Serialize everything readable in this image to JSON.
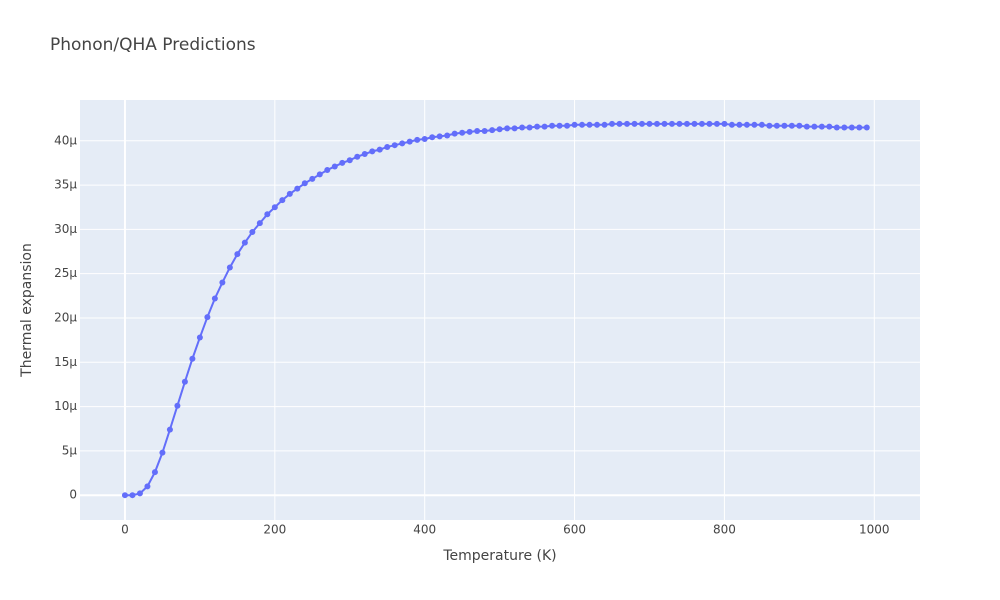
{
  "chart_data": {
    "type": "line",
    "title": "Phonon/QHA Predictions",
    "x_label": "Temperature (K)",
    "y_label": "Thermal expansion",
    "x": [
      0,
      10,
      20,
      30,
      40,
      50,
      60,
      70,
      80,
      90,
      100,
      110,
      120,
      130,
      140,
      150,
      160,
      170,
      180,
      190,
      200,
      210,
      220,
      230,
      240,
      250,
      260,
      270,
      280,
      290,
      300,
      310,
      320,
      330,
      340,
      350,
      360,
      370,
      380,
      390,
      400,
      410,
      420,
      430,
      440,
      450,
      460,
      470,
      480,
      490,
      500,
      510,
      520,
      530,
      540,
      550,
      560,
      570,
      580,
      590,
      600,
      610,
      620,
      630,
      640,
      650,
      660,
      670,
      680,
      690,
      700,
      710,
      720,
      730,
      740,
      750,
      760,
      770,
      780,
      790,
      800,
      810,
      820,
      830,
      840,
      850,
      860,
      870,
      880,
      890,
      900,
      910,
      920,
      930,
      940,
      950,
      960,
      970,
      980,
      990
    ],
    "series": [
      {
        "name": "Thermal expansion",
        "color": "#636efa",
        "values": [
          0,
          0,
          2e-07,
          1e-06,
          2.6e-06,
          4.8e-06,
          7.4e-06,
          1.01e-05,
          1.28e-05,
          1.54e-05,
          1.78e-05,
          2.01e-05,
          2.22e-05,
          2.4e-05,
          2.57e-05,
          2.72e-05,
          2.85e-05,
          2.97e-05,
          3.07e-05,
          3.17e-05,
          3.25e-05,
          3.33e-05,
          3.4e-05,
          3.46e-05,
          3.52e-05,
          3.57e-05,
          3.62e-05,
          3.67e-05,
          3.71e-05,
          3.75e-05,
          3.78e-05,
          3.82e-05,
          3.85e-05,
          3.88e-05,
          3.9e-05,
          3.93e-05,
          3.95e-05,
          3.97e-05,
          3.99e-05,
          4.01e-05,
          4.02e-05,
          4.04e-05,
          4.05e-05,
          4.06e-05,
          4.08e-05,
          4.09e-05,
          4.1e-05,
          4.11e-05,
          4.11e-05,
          4.12e-05,
          4.13e-05,
          4.14e-05,
          4.14e-05,
          4.15e-05,
          4.15e-05,
          4.16e-05,
          4.16e-05,
          4.17e-05,
          4.17e-05,
          4.17e-05,
          4.18e-05,
          4.18e-05,
          4.18e-05,
          4.18e-05,
          4.18e-05,
          4.19e-05,
          4.19e-05,
          4.19e-05,
          4.19e-05,
          4.19e-05,
          4.19e-05,
          4.19e-05,
          4.19e-05,
          4.19e-05,
          4.19e-05,
          4.19e-05,
          4.19e-05,
          4.19e-05,
          4.19e-05,
          4.19e-05,
          4.19e-05,
          4.18e-05,
          4.18e-05,
          4.18e-05,
          4.18e-05,
          4.18e-05,
          4.17e-05,
          4.17e-05,
          4.17e-05,
          4.17e-05,
          4.17e-05,
          4.16e-05,
          4.16e-05,
          4.16e-05,
          4.16e-05,
          4.15e-05,
          4.15e-05,
          4.15e-05,
          4.15e-05,
          4.15e-05
        ]
      }
    ],
    "xlim": [
      -60,
      1061
    ],
    "ylim": [
      -2.8e-06,
      4.46e-05
    ],
    "xticks": [
      0,
      200,
      400,
      600,
      800,
      1000
    ],
    "yticks": [
      0,
      {
        "value": 5e-06,
        "label": "5µ"
      },
      {
        "value": 1e-05,
        "label": "10µ"
      },
      {
        "value": 1.5e-05,
        "label": "15µ"
      },
      {
        "value": 2e-05,
        "label": "20µ"
      },
      {
        "value": 2.5e-05,
        "label": "25µ"
      },
      {
        "value": 3e-05,
        "label": "30µ"
      },
      {
        "value": 3.5e-05,
        "label": "35µ"
      },
      {
        "value": 4e-05,
        "label": "40µ"
      }
    ],
    "grid": true,
    "markers": true
  }
}
